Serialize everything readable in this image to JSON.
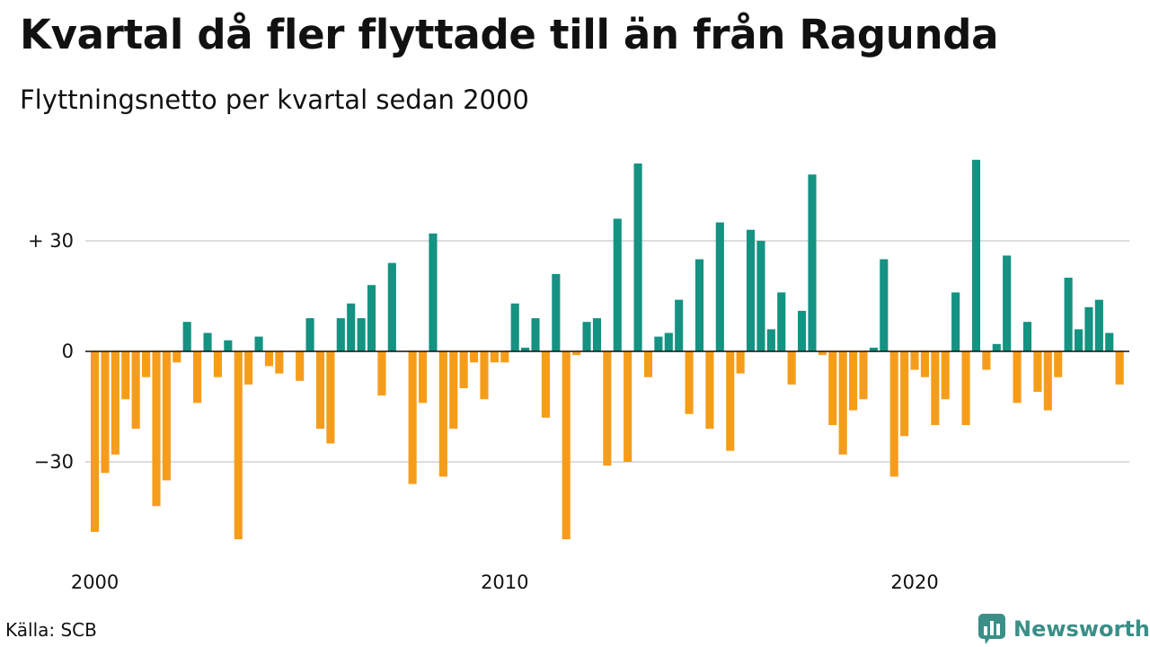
{
  "colors": {
    "positive": "#149282",
    "negative": "#f59d1b",
    "grid": "#dddddd",
    "brand": "#3a8f87"
  },
  "footer": {
    "source": "Källa: SCB",
    "brand": "Newsworthy",
    "brand_icon": "bar-chart-logo-icon"
  },
  "chart_data": {
    "type": "bar",
    "title": "Kvartal då fler flyttade till än från Ragunda",
    "subtitle": "Flyttningsnetto per kvartal sedan 2000",
    "x_start_quarter": "2000 Q1",
    "x_ticks": [
      {
        "label": "2000",
        "year": 2000
      },
      {
        "label": "2010",
        "year": 2010
      },
      {
        "label": "2020",
        "year": 2020
      }
    ],
    "y_ticks": [
      {
        "label": "+ 30",
        "value": 30
      },
      {
        "label": "0",
        "value": 0
      },
      {
        "label": "−30",
        "value": -30
      }
    ],
    "ylim": [
      -58,
      54
    ],
    "grid": true,
    "values": [
      -49,
      -33,
      -28,
      -13,
      -21,
      -7,
      -42,
      -35,
      -3,
      8,
      -14,
      5,
      -7,
      3,
      -51,
      -9,
      4,
      -4,
      -6,
      0,
      -8,
      9,
      -21,
      -25,
      9,
      13,
      9,
      18,
      -12,
      24,
      0,
      -36,
      -14,
      32,
      -34,
      -21,
      -10,
      -3,
      -13,
      -3,
      -3,
      13,
      1,
      9,
      -18,
      21,
      -51,
      -1,
      8,
      9,
      -31,
      36,
      -30,
      51,
      -7,
      4,
      5,
      14,
      -17,
      25,
      -21,
      35,
      -27,
      -6,
      33,
      30,
      6,
      16,
      -9,
      11,
      48,
      -1,
      -20,
      -28,
      -16,
      -13,
      1,
      25,
      -34,
      -23,
      -5,
      -7,
      -20,
      -13,
      16,
      -20,
      52,
      -5,
      2,
      26,
      -14,
      8,
      -11,
      -16,
      -7,
      20,
      6,
      12,
      14,
      5,
      -9
    ]
  }
}
